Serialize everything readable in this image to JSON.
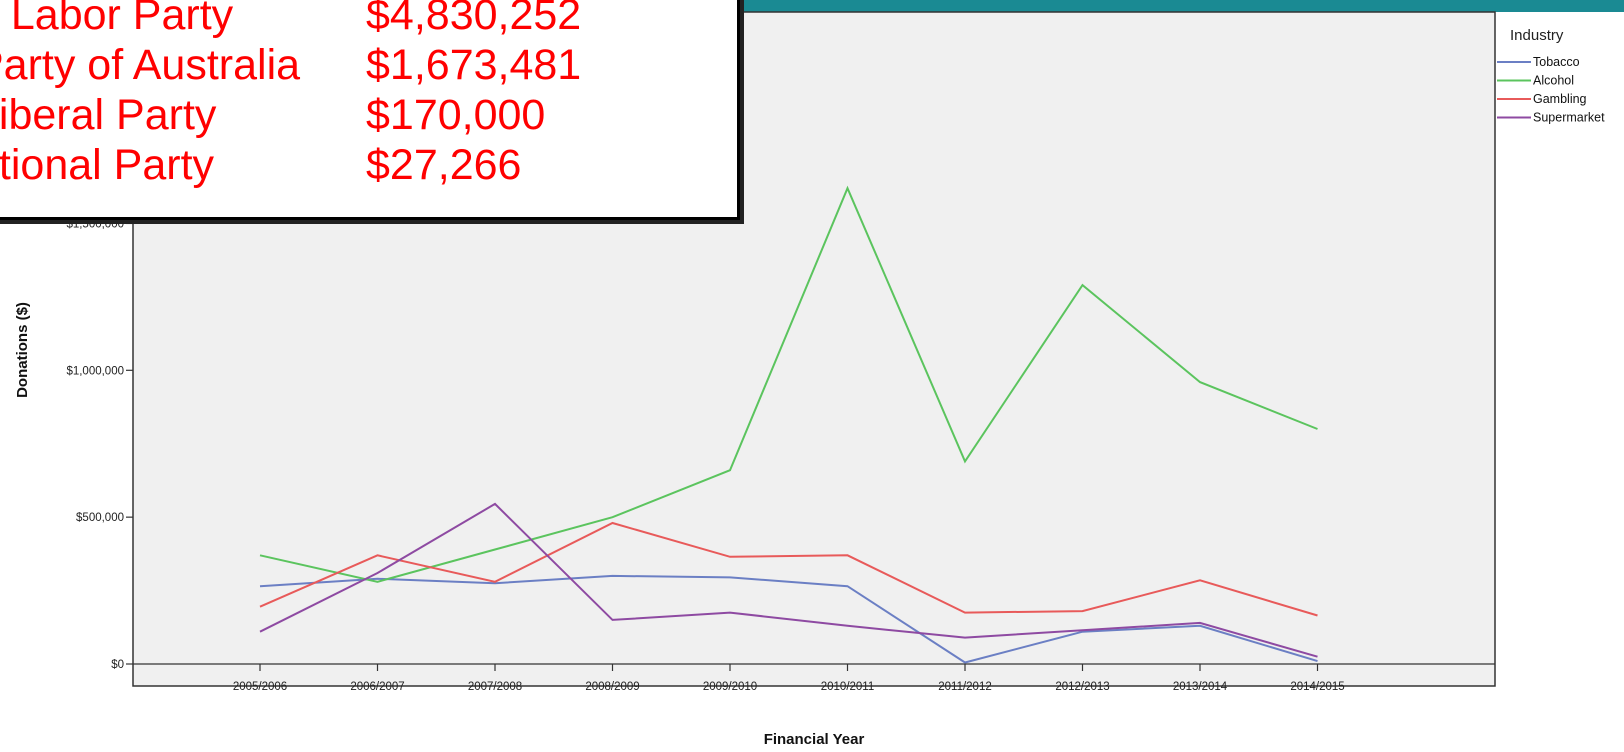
{
  "overlay": {
    "rows": [
      {
        "party": "n Labor Party",
        "amount": "$4,830,252"
      },
      {
        "party": "Party of Australia",
        "amount": "$1,673,481"
      },
      {
        "party": "Liberal Party",
        "amount": "$170,000"
      },
      {
        "party": "ational Party",
        "amount": "$27,266"
      }
    ]
  },
  "chart_data": {
    "type": "line",
    "xlabel": "Financial Year",
    "ylabel": "Donations ($)",
    "categories": [
      "2005/2006",
      "2006/2007",
      "2007/2008",
      "2008/2009",
      "2009/2010",
      "2010/2011",
      "2011/2012",
      "2012/2013",
      "2013/2014",
      "2014/2015"
    ],
    "ylim": [
      0,
      2220000
    ],
    "yticks": [
      0,
      500000,
      1000000,
      1500000
    ],
    "ytick_labels": [
      "$0",
      "$500,000",
      "$1,000,000",
      "$1,500,000"
    ],
    "grid": false,
    "legend": {
      "title": "Industry",
      "position": "top-right"
    },
    "series": [
      {
        "name": "Tobacco",
        "color": "#6b7fc4",
        "values": [
          265000,
          290000,
          275000,
          300000,
          295000,
          265000,
          5000,
          110000,
          130000,
          10000
        ]
      },
      {
        "name": "Alcohol",
        "color": "#5bc45e",
        "values": [
          370000,
          280000,
          390000,
          500000,
          660000,
          1620000,
          690000,
          1290000,
          960000,
          800000
        ]
      },
      {
        "name": "Gambling",
        "color": "#e85a5a",
        "values": [
          195000,
          370000,
          280000,
          480000,
          365000,
          370000,
          175000,
          180000,
          285000,
          165000
        ]
      },
      {
        "name": "Supermarket",
        "color": "#8e4aa2",
        "values": [
          110000,
          310000,
          545000,
          150000,
          175000,
          130000,
          90000,
          115000,
          140000,
          25000
        ]
      }
    ]
  }
}
